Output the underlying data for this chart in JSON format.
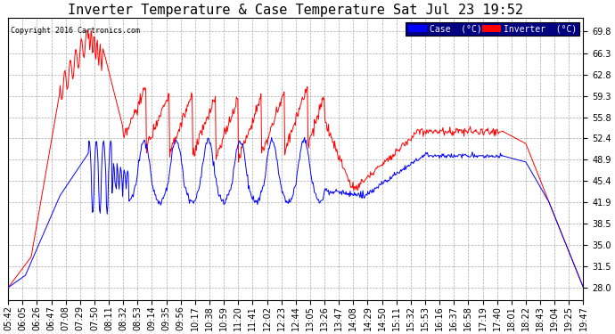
{
  "title": "Inverter Temperature & Case Temperature Sat Jul 23 19:52",
  "copyright": "Copyright 2016 Cartronics.com",
  "ylabel_right_ticks": [
    28.0,
    31.5,
    35.0,
    38.5,
    41.9,
    45.4,
    48.9,
    52.4,
    55.8,
    59.3,
    62.8,
    66.3,
    69.8
  ],
  "legend_case_label": "Case  (°C)",
  "legend_inverter_label": "Inverter  (°C)",
  "case_color": "#0000ff",
  "inverter_color": "#ff0000",
  "background_color": "#ffffff",
  "plot_bg_color": "#ffffff",
  "grid_color": "#aaaaaa",
  "title_fontsize": 11,
  "tick_fontsize": 7,
  "x_tick_labels": [
    "05:42",
    "06:05",
    "06:26",
    "06:47",
    "07:08",
    "07:29",
    "07:50",
    "08:11",
    "08:32",
    "08:53",
    "09:14",
    "09:35",
    "09:56",
    "10:17",
    "10:38",
    "10:59",
    "11:20",
    "11:41",
    "12:02",
    "12:23",
    "12:44",
    "13:05",
    "13:26",
    "13:47",
    "14:08",
    "14:29",
    "14:50",
    "15:11",
    "15:32",
    "15:53",
    "16:16",
    "16:37",
    "16:58",
    "17:19",
    "17:40",
    "18:01",
    "18:22",
    "18:43",
    "19:04",
    "19:25",
    "19:47"
  ],
  "ylim": [
    26.0,
    72.0
  ],
  "num_points": 820
}
